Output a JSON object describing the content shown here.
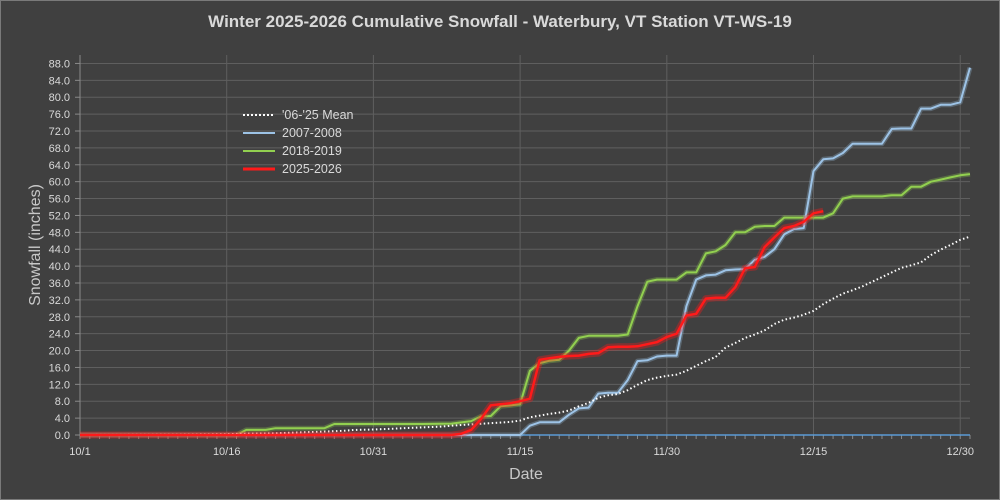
{
  "chart_data": {
    "type": "line",
    "title": "Winter 2025-2026 Cumulative Snowfall - Waterbury, VT Station VT-WS-19",
    "xlabel": "Date",
    "ylabel": "Snowfall (inches)",
    "ylim": [
      0,
      90
    ],
    "xlim": [
      0,
      91
    ],
    "y_ticks": [
      "0.0",
      "4.0",
      "8.0",
      "12.0",
      "16.0",
      "20.0",
      "24.0",
      "28.0",
      "32.0",
      "36.0",
      "40.0",
      "44.0",
      "48.0",
      "52.0",
      "56.0",
      "60.0",
      "64.0",
      "68.0",
      "72.0",
      "76.0",
      "80.0",
      "84.0",
      "88.0"
    ],
    "x_ticks": [
      {
        "label": "10/1",
        "day": 0
      },
      {
        "label": "10/16",
        "day": 15
      },
      {
        "label": "10/31",
        "day": 30
      },
      {
        "label": "11/15",
        "day": 45
      },
      {
        "label": "11/30",
        "day": 60
      },
      {
        "label": "12/15",
        "day": 75
      },
      {
        "label": "12/30",
        "day": 90
      }
    ],
    "grid": true,
    "legend_position": "upper-left",
    "legend_labels": [
      "'06-'25 Mean",
      "2007-2008",
      "2018-2019",
      "2025-2026"
    ],
    "series": [
      {
        "name": "'06-'25 Mean",
        "color": "#ffffff",
        "style": "dotted",
        "x": [
          0,
          10,
          15,
          17,
          20,
          22,
          25,
          27,
          28,
          30,
          32,
          33,
          35,
          37,
          38,
          40,
          42,
          44,
          45,
          46,
          47,
          48,
          49,
          50,
          51,
          52,
          53,
          54,
          55,
          56,
          57,
          58,
          59,
          60,
          61,
          62,
          63,
          64,
          65,
          66,
          67,
          68,
          69,
          70,
          71,
          72,
          73,
          74,
          75,
          76,
          77,
          78,
          79,
          80,
          81,
          82,
          83,
          84,
          85,
          86,
          87,
          88,
          89,
          90,
          91
        ],
        "values": [
          0,
          0.1,
          0.2,
          0.3,
          0.4,
          0.6,
          0.8,
          1.0,
          1.2,
          1.3,
          1.5,
          1.6,
          1.8,
          2.0,
          2.2,
          2.5,
          2.8,
          3.1,
          3.4,
          4.2,
          4.6,
          5.0,
          5.3,
          5.8,
          6.8,
          7.6,
          8.8,
          9.4,
          9.7,
          10.6,
          11.9,
          13.0,
          13.6,
          14.0,
          14.3,
          15.2,
          16.4,
          17.5,
          18.5,
          20.7,
          21.8,
          23.0,
          23.8,
          24.8,
          26.3,
          27.3,
          27.8,
          28.5,
          29.4,
          31.0,
          32.3,
          33.5,
          34.3,
          35.2,
          36.3,
          37.4,
          38.5,
          39.6,
          40.2,
          40.9,
          42.6,
          43.9,
          45.0,
          46.2,
          47.0
        ]
      },
      {
        "name": "2007-2008",
        "color": "#9dc3e6",
        "style": "solid",
        "x": [
          0,
          45,
          46,
          47,
          48,
          49,
          50,
          51,
          52,
          53,
          54,
          55,
          56,
          57,
          58,
          59,
          60,
          61,
          62,
          63,
          64,
          65,
          66,
          67,
          68,
          69,
          70,
          71,
          72,
          73,
          74,
          75,
          76,
          77,
          78,
          79,
          80,
          81,
          82,
          83,
          84,
          85,
          86,
          87,
          88,
          89,
          90,
          91
        ],
        "values": [
          0,
          0,
          2.2,
          3.0,
          3.0,
          3.0,
          4.8,
          6.3,
          6.5,
          9.8,
          10.0,
          10.0,
          13.0,
          17.5,
          17.7,
          18.6,
          18.8,
          18.8,
          30.5,
          36.8,
          37.8,
          38.0,
          39.0,
          39.2,
          39.3,
          41.5,
          42.2,
          44.0,
          47.5,
          48.8,
          49.0,
          62.5,
          65.3,
          65.5,
          66.8,
          69.0,
          69.0,
          69.0,
          69.0,
          72.5,
          72.6,
          72.6,
          77.3,
          77.3,
          78.2,
          78.2,
          78.8,
          87.0
        ]
      },
      {
        "name": "2018-2019",
        "color": "#92d050",
        "style": "solid",
        "x": [
          0,
          16,
          17,
          19,
          20,
          22,
          25,
          26,
          27,
          30,
          35,
          38,
          40,
          41,
          42,
          43,
          44,
          45,
          46,
          47,
          48,
          49,
          50,
          51,
          52,
          53,
          54,
          55,
          56,
          57,
          58,
          59,
          60,
          61,
          62,
          63,
          64,
          65,
          66,
          67,
          68,
          69,
          70,
          71,
          72,
          73,
          74,
          75,
          76,
          77,
          78,
          79,
          80,
          81,
          82,
          83,
          84,
          85,
          86,
          87,
          88,
          89,
          90,
          91
        ],
        "values": [
          0,
          0,
          1.2,
          1.2,
          1.6,
          1.6,
          1.6,
          2.6,
          2.6,
          2.6,
          2.6,
          2.7,
          3.3,
          4.4,
          4.5,
          6.8,
          7.0,
          7.3,
          15.2,
          17.0,
          17.6,
          17.8,
          20.0,
          23.0,
          23.5,
          23.5,
          23.5,
          23.5,
          23.8,
          30.5,
          36.3,
          36.8,
          36.8,
          36.8,
          38.5,
          38.5,
          43.0,
          43.5,
          45.0,
          48.0,
          48.0,
          49.3,
          49.5,
          49.5,
          51.5,
          51.5,
          51.5,
          51.5,
          51.5,
          52.5,
          56.0,
          56.5,
          56.5,
          56.5,
          56.5,
          56.8,
          56.8,
          58.8,
          58.8,
          60.0,
          60.5,
          61.0,
          61.5,
          61.8
        ]
      },
      {
        "name": "2025-2026",
        "color": "#ff1a1a",
        "style": "solid",
        "x": [
          0,
          38,
          39,
          40,
          41,
          42,
          43,
          44,
          45,
          46,
          47,
          48,
          49,
          50,
          51,
          52,
          53,
          54,
          55,
          56,
          57,
          58,
          59,
          60,
          61,
          62,
          63,
          64,
          65,
          66,
          67,
          68,
          69,
          70,
          71,
          72,
          73,
          74,
          75,
          76
        ],
        "values": [
          0,
          0,
          0.3,
          1.2,
          3.8,
          7.0,
          7.3,
          7.5,
          8.0,
          8.6,
          17.8,
          18.2,
          18.5,
          18.7,
          18.8,
          19.2,
          19.4,
          20.8,
          20.9,
          20.9,
          21.0,
          21.5,
          22.0,
          23.2,
          24.0,
          28.3,
          28.7,
          32.3,
          32.5,
          32.5,
          35.0,
          39.5,
          39.8,
          44.5,
          46.8,
          49.0,
          49.5,
          50.5,
          52.5,
          53.0
        ]
      }
    ]
  }
}
